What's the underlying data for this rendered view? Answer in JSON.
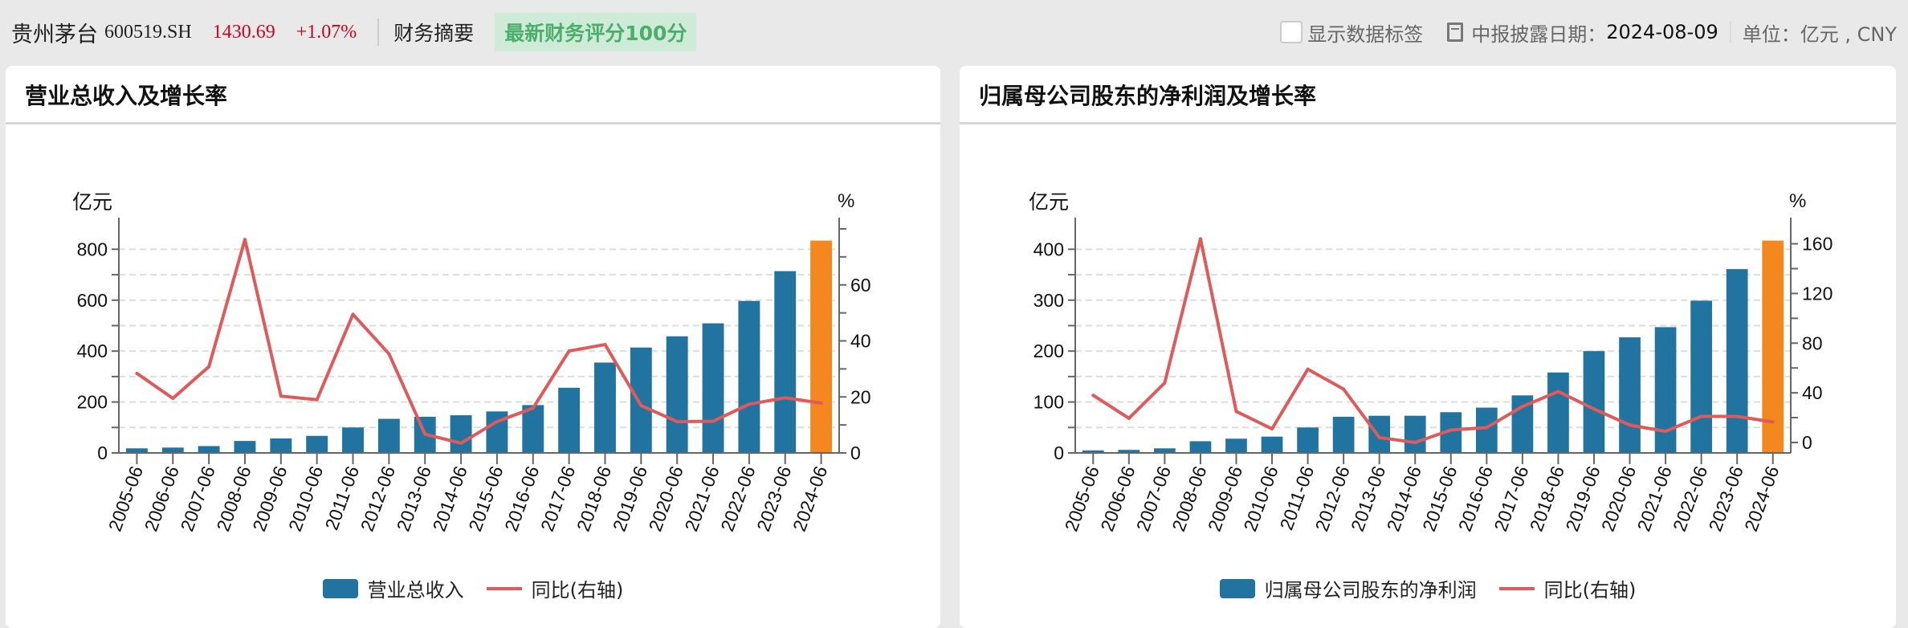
{
  "header": {
    "stock_name": "贵州茅台",
    "stock_code": "600519.SH",
    "price": "1430.69",
    "change": "+1.07%",
    "summary_label": "财务摘要",
    "score_badge": "最新财务评分100分",
    "show_labels": "显示数据标签",
    "disclosure_label": "中报披露日期：",
    "disclosure_date": "2024-08-09",
    "unit": "单位：亿元 , CNY"
  },
  "colors": {
    "bar": "#2274a0",
    "bar_highlight": "#f5871f",
    "line": "#e05a5a"
  },
  "chart_data": [
    {
      "type": "bar",
      "title": "营业总收入及增长率",
      "ylabel": "亿元",
      "y2label": "%",
      "categories": [
        "2005-06",
        "2006-06",
        "2007-06",
        "2008-06",
        "2009-06",
        "2010-06",
        "2011-06",
        "2012-06",
        "2013-06",
        "2014-06",
        "2015-06",
        "2016-06",
        "2017-06",
        "2018-06",
        "2019-06",
        "2020-06",
        "2021-06",
        "2022-06",
        "2023-06",
        "2024-06"
      ],
      "series": [
        {
          "name": "营业总收入",
          "type": "bar",
          "axis": "left",
          "values": [
            18,
            21,
            27,
            47,
            57,
            67,
            100,
            134,
            142,
            148,
            163,
            188,
            256,
            355,
            414,
            458,
            509,
            597,
            714,
            834
          ]
        },
        {
          "name": "同比(右轴)",
          "type": "line",
          "axis": "right",
          "values": [
            28.4,
            19.5,
            30.8,
            76.2,
            20.3,
            19.0,
            49.5,
            35.4,
            6.7,
            3.5,
            11.2,
            16.0,
            36.4,
            38.7,
            16.9,
            11.2,
            11.3,
            17.4,
            19.7,
            17.8
          ]
        }
      ],
      "ylim": [
        0,
        880
      ],
      "y_ticks": [
        0,
        200,
        400,
        600,
        800
      ],
      "y_minor_step": 100,
      "y2lim": [
        0,
        80
      ],
      "y2_ticks": [
        0,
        20,
        40,
        60
      ],
      "y2_minor_step": 10,
      "grid": true,
      "legend": "bottom"
    },
    {
      "type": "bar",
      "title": "归属母公司股东的净利润及增长率",
      "ylabel": "亿元",
      "y2label": "%",
      "categories": [
        "2005-06",
        "2006-06",
        "2007-06",
        "2008-06",
        "2009-06",
        "2010-06",
        "2011-06",
        "2012-06",
        "2013-06",
        "2014-06",
        "2015-06",
        "2016-06",
        "2017-06",
        "2018-06",
        "2019-06",
        "2020-06",
        "2021-06",
        "2022-06",
        "2023-06",
        "2024-06"
      ],
      "series": [
        {
          "name": "归属母公司股东的净利润",
          "type": "bar",
          "axis": "left",
          "values": [
            5,
            6,
            9,
            23,
            28,
            32,
            50,
            71,
            73,
            73,
            80,
            89,
            113,
            158,
            200,
            227,
            247,
            299,
            361,
            417
          ]
        },
        {
          "name": "同比(右轴)",
          "type": "line",
          "axis": "right",
          "values": [
            38,
            19.5,
            48,
            164,
            25,
            11,
            59,
            43,
            4,
            0,
            10,
            12,
            29,
            41,
            27,
            14,
            9,
            21,
            21,
            16.5
          ]
        }
      ],
      "ylim": [
        0,
        440
      ],
      "y_ticks": [
        0,
        100,
        200,
        300,
        400
      ],
      "y_minor_step": 50,
      "y2lim": [
        -8.4,
        172
      ],
      "y2_ticks": [
        0,
        40,
        80,
        120,
        160
      ],
      "y2_minor_step": 20,
      "grid": true,
      "legend": "bottom"
    }
  ]
}
